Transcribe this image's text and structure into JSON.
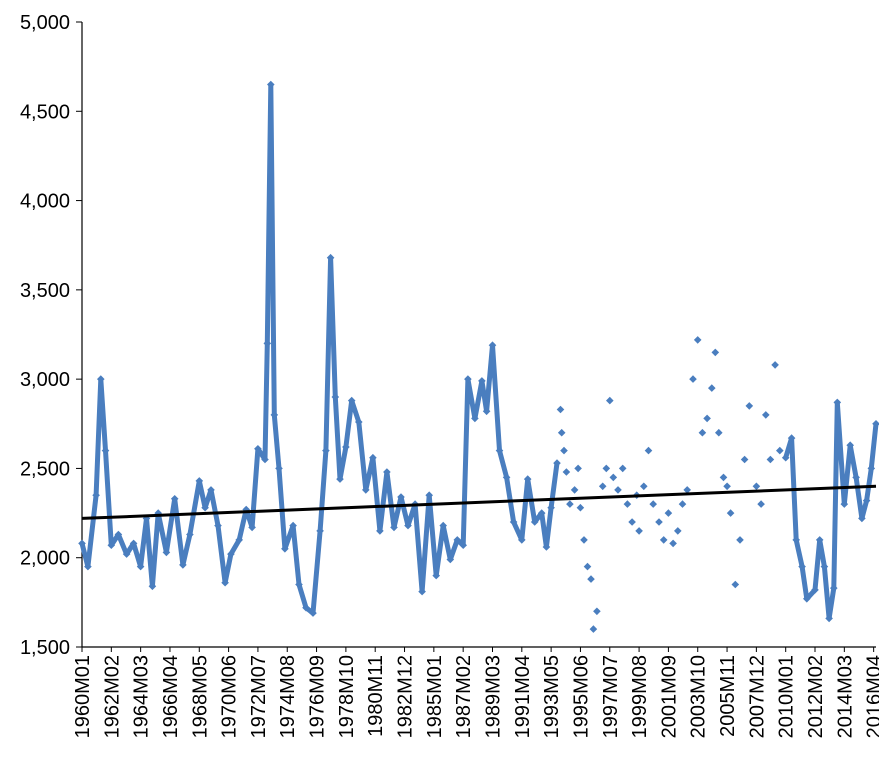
{
  "chart_data": {
    "type": "line",
    "title": "",
    "xlabel": "",
    "ylabel": "",
    "ylim": [
      1500,
      5000
    ],
    "yticks": [
      1500,
      2000,
      2500,
      3000,
      3500,
      4000,
      4500,
      5000
    ],
    "ytick_labels": [
      "1,500",
      "2,000",
      "2,500",
      "3,000",
      "3,500",
      "4,000",
      "4,500",
      "5,000"
    ],
    "x_start": "1960M01",
    "x_end": "2016M06",
    "xtick_labels": [
      "1960M01",
      "1962M02",
      "1964M03",
      "1966M04",
      "1968M05",
      "1970M06",
      "1972M07",
      "1974M08",
      "1976M09",
      "1978M10",
      "1980M11",
      "1982M12",
      "1985M01",
      "1987M02",
      "1989M03",
      "1991M04",
      "1993M05",
      "1995M06",
      "1997M07",
      "1999M08",
      "2001M09",
      "2003M10",
      "2005M11",
      "2007M12",
      "2010M01",
      "2012M02",
      "2014M03",
      "2016M04"
    ],
    "grid": false,
    "legend": "none",
    "series_color": "#4a7ebf",
    "trend_color": "#000000",
    "series": [
      {
        "style": "line-with-markers",
        "points": [
          [
            "1960M01",
            2080
          ],
          [
            "1960M06",
            1950
          ],
          [
            "1961M01",
            2350
          ],
          [
            "1961M05",
            3000
          ],
          [
            "1961M09",
            2600
          ],
          [
            "1962M02",
            2070
          ],
          [
            "1962M08",
            2130
          ],
          [
            "1963M03",
            2020
          ],
          [
            "1963M09",
            2080
          ],
          [
            "1964M03",
            1950
          ],
          [
            "1964M08",
            2220
          ],
          [
            "1965M01",
            1840
          ],
          [
            "1965M06",
            2250
          ],
          [
            "1966M01",
            2030
          ],
          [
            "1966M08",
            2330
          ],
          [
            "1967M03",
            1960
          ],
          [
            "1967M09",
            2130
          ],
          [
            "1968M05",
            2430
          ],
          [
            "1968M10",
            2280
          ],
          [
            "1969M03",
            2380
          ],
          [
            "1969M09",
            2180
          ],
          [
            "1970M03",
            1860
          ],
          [
            "1970M08",
            2020
          ],
          [
            "1971M03",
            2100
          ],
          [
            "1971M09",
            2270
          ],
          [
            "1972M02",
            2170
          ],
          [
            "1972M07",
            2610
          ],
          [
            "1973M01",
            2550
          ],
          [
            "1973M03",
            3200
          ],
          [
            "1973M06",
            4650
          ],
          [
            "1973M09",
            2800
          ],
          [
            "1974M01",
            2500
          ],
          [
            "1974M06",
            2050
          ],
          [
            "1975M01",
            2180
          ],
          [
            "1975M06",
            1850
          ],
          [
            "1975M12",
            1720
          ],
          [
            "1976M06",
            1690
          ],
          [
            "1976M12",
            2150
          ],
          [
            "1977M05",
            2600
          ],
          [
            "1977M09",
            3680
          ],
          [
            "1978M01",
            2900
          ],
          [
            "1978M05",
            2440
          ],
          [
            "1978M10",
            2620
          ],
          [
            "1979M03",
            2880
          ],
          [
            "1979M09",
            2760
          ],
          [
            "1980M03",
            2380
          ],
          [
            "1980M09",
            2560
          ],
          [
            "1981M03",
            2150
          ],
          [
            "1981M09",
            2480
          ],
          [
            "1982M03",
            2170
          ],
          [
            "1982M09",
            2340
          ],
          [
            "1983M03",
            2180
          ],
          [
            "1983M09",
            2300
          ],
          [
            "1984M03",
            1810
          ],
          [
            "1984M09",
            2350
          ],
          [
            "1985M03",
            1900
          ],
          [
            "1985M09",
            2180
          ],
          [
            "1986M03",
            1990
          ],
          [
            "1986M09",
            2100
          ],
          [
            "1987M02",
            2070
          ],
          [
            "1987M06",
            3000
          ],
          [
            "1987M12",
            2780
          ],
          [
            "1988M06",
            2990
          ],
          [
            "1988M10",
            2820
          ],
          [
            "1989M03",
            3190
          ],
          [
            "1989M09",
            2600
          ],
          [
            "1990M03",
            2450
          ],
          [
            "1990M09",
            2200
          ],
          [
            "1991M04",
            2100
          ],
          [
            "1991M09",
            2440
          ],
          [
            "1992M03",
            2200
          ],
          [
            "1992M09",
            2250
          ],
          [
            "1993M01",
            2060
          ],
          [
            "1993M05",
            2280
          ],
          [
            "1993M10",
            2530
          ]
        ]
      },
      {
        "style": "markers",
        "points": [
          [
            "1994M01",
            2830
          ],
          [
            "1994M02",
            2700
          ],
          [
            "1994M04",
            2600
          ],
          [
            "1994M06",
            2480
          ],
          [
            "1994M09",
            2300
          ],
          [
            "1995M01",
            2380
          ],
          [
            "1995M04",
            2500
          ],
          [
            "1995M06",
            2280
          ],
          [
            "1995M09",
            2100
          ],
          [
            "1995M12",
            1950
          ],
          [
            "1996M03",
            1880
          ],
          [
            "1996M05",
            1600
          ],
          [
            "1996M08",
            1700
          ],
          [
            "1997M01",
            2400
          ],
          [
            "1997M04",
            2500
          ],
          [
            "1997M07",
            2880
          ],
          [
            "1997M10",
            2450
          ],
          [
            "1998M02",
            2380
          ],
          [
            "1998M06",
            2500
          ],
          [
            "1998M10",
            2300
          ],
          [
            "1999M02",
            2200
          ],
          [
            "1999M06",
            2350
          ],
          [
            "1999M08",
            2150
          ],
          [
            "1999M12",
            2400
          ],
          [
            "2000M04",
            2600
          ],
          [
            "2000M08",
            2300
          ],
          [
            "2001M01",
            2200
          ],
          [
            "2001M05",
            2100
          ],
          [
            "2001M09",
            2250
          ],
          [
            "2002M01",
            2080
          ],
          [
            "2002M05",
            2150
          ],
          [
            "2002M09",
            2300
          ],
          [
            "2003M01",
            2380
          ],
          [
            "2003M06",
            3000
          ],
          [
            "2003M10",
            3220
          ],
          [
            "2004M02",
            2700
          ],
          [
            "2004M06",
            2780
          ],
          [
            "2004M10",
            2950
          ],
          [
            "2005M01",
            3150
          ],
          [
            "2005M04",
            2700
          ],
          [
            "2005M08",
            2450
          ],
          [
            "2005M11",
            2400
          ],
          [
            "2006M02",
            2250
          ],
          [
            "2006M06",
            1850
          ],
          [
            "2006M10",
            2100
          ],
          [
            "2007M02",
            2550
          ],
          [
            "2007M06",
            2850
          ],
          [
            "2007M12",
            2400
          ],
          [
            "2008M04",
            2300
          ],
          [
            "2008M08",
            2800
          ],
          [
            "2008M12",
            2550
          ],
          [
            "2009M04",
            3080
          ],
          [
            "2009M08",
            2600
          ]
        ]
      },
      {
        "style": "line-with-markers",
        "points": [
          [
            "2010M01",
            2560
          ],
          [
            "2010M06",
            2670
          ],
          [
            "2010M10",
            2100
          ],
          [
            "2011M03",
            1950
          ],
          [
            "2011M07",
            1770
          ],
          [
            "2012M02",
            1820
          ],
          [
            "2012M06",
            2100
          ],
          [
            "2012M10",
            1950
          ],
          [
            "2013M02",
            1660
          ],
          [
            "2013M06",
            1830
          ],
          [
            "2013M09",
            2870
          ],
          [
            "2014M03",
            2300
          ],
          [
            "2014M08",
            2630
          ],
          [
            "2015M01",
            2450
          ],
          [
            "2015M06",
            2220
          ],
          [
            "2015M10",
            2320
          ],
          [
            "2016M02",
            2500
          ],
          [
            "2016M06",
            2750
          ]
        ]
      }
    ],
    "trendline": {
      "start": [
        "1960M01",
        2220
      ],
      "end": [
        "2016M06",
        2400
      ]
    }
  }
}
